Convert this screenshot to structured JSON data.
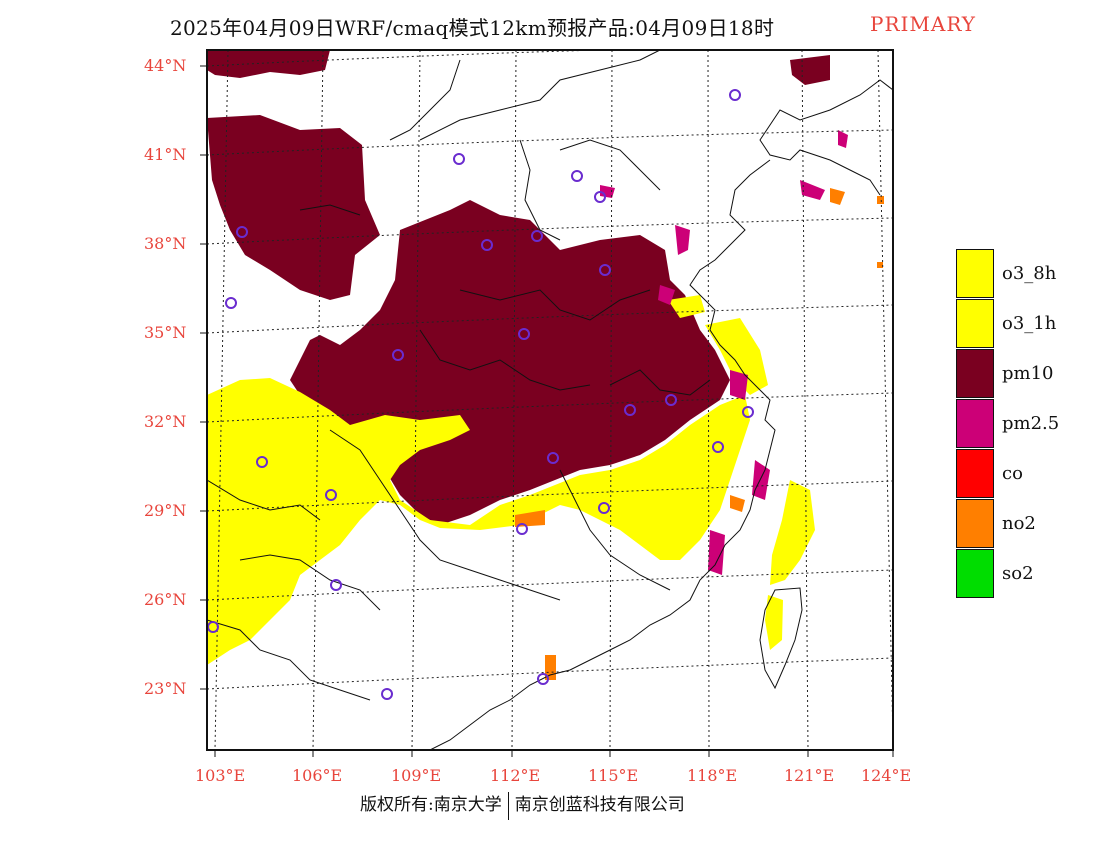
{
  "title": {
    "main": "2025年04月09日WRF/cmaq模式12km预报产品:04月09日18时",
    "tag": "PRIMARY",
    "tag_color": "#e8453c"
  },
  "axes": {
    "lat_labels": [
      "44°N",
      "41°N",
      "38°N",
      "35°N",
      "32°N",
      "29°N",
      "26°N",
      "23°N"
    ],
    "lon_labels": [
      "103°E",
      "106°E",
      "109°E",
      "112°E",
      "115°E",
      "118°E",
      "121°E",
      "124°E"
    ]
  },
  "legend": {
    "items": [
      {
        "label": "o3_8h",
        "color": "#ffff00"
      },
      {
        "label": "o3_1h",
        "color": "#ffff00"
      },
      {
        "label": "pm10",
        "color": "#7a0020"
      },
      {
        "label": "pm2.5",
        "color": "#cc0077"
      },
      {
        "label": "co",
        "color": "#ff0000"
      },
      {
        "label": "no2",
        "color": "#ff7f00"
      },
      {
        "label": "so2",
        "color": "#00dd00"
      }
    ]
  },
  "footer": {
    "left": "版权所有:南京大学",
    "right": "南京创蓝科技有限公司"
  }
}
